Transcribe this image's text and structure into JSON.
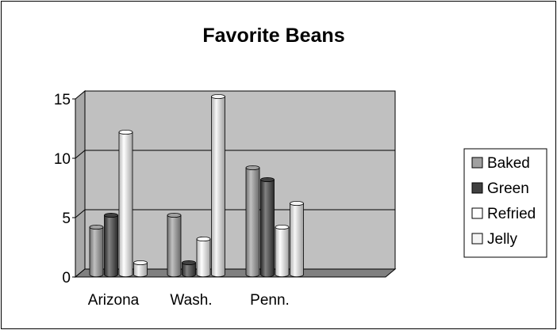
{
  "chart_data": {
    "type": "bar",
    "title": "Favorite Beans",
    "xlabel": "",
    "ylabel": "",
    "categories": [
      "Arizona",
      "Wash.",
      "Penn."
    ],
    "series": [
      {
        "name": "Baked",
        "values": [
          4,
          5,
          9
        ],
        "color": "#a0a0a0"
      },
      {
        "name": "Green",
        "values": [
          5,
          1,
          8
        ],
        "color": "#404040"
      },
      {
        "name": "Refried",
        "values": [
          12,
          3,
          4
        ],
        "color": "#ffffff"
      },
      {
        "name": "Jelly",
        "values": [
          1,
          15,
          6
        ],
        "color": "#f4f4f4"
      }
    ],
    "ylim": [
      0,
      15
    ],
    "yticks": [
      0,
      5,
      10,
      15
    ],
    "grid": true,
    "legend_position": "right",
    "plot_background": "#c0c0c0",
    "floor_color": "#808080"
  }
}
